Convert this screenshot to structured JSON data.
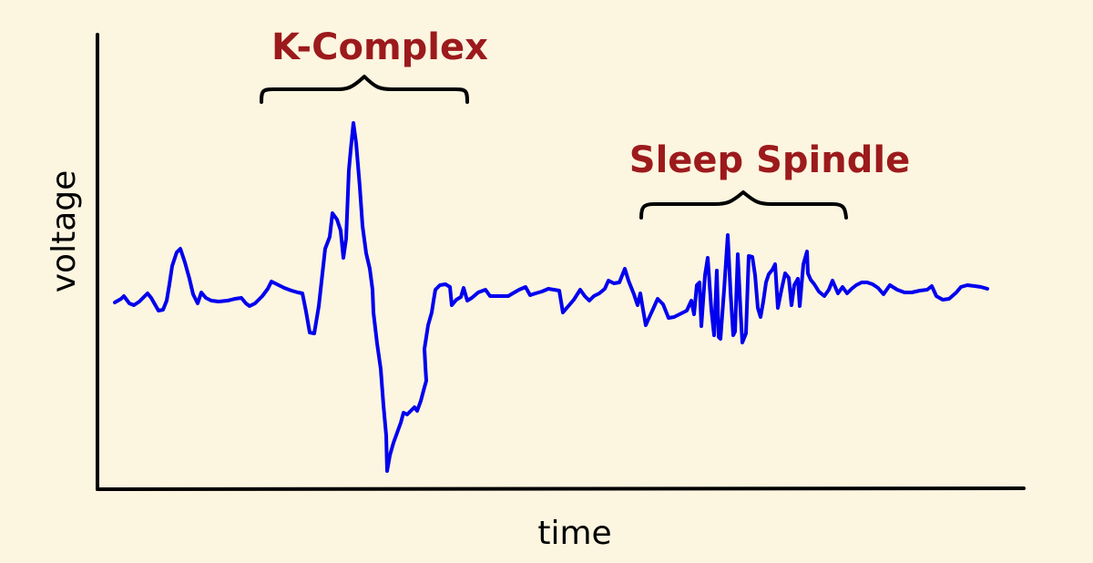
{
  "annotations": {
    "k_complex": "K-Complex",
    "sleep_spindle": "Sleep Spindle"
  },
  "axes": {
    "xlabel": "time",
    "ylabel": "voltage"
  },
  "colors": {
    "background": "#fcf5e0",
    "trace": "#0000ee",
    "annotation": "#9c1a1c",
    "axis": "#000000"
  }
}
